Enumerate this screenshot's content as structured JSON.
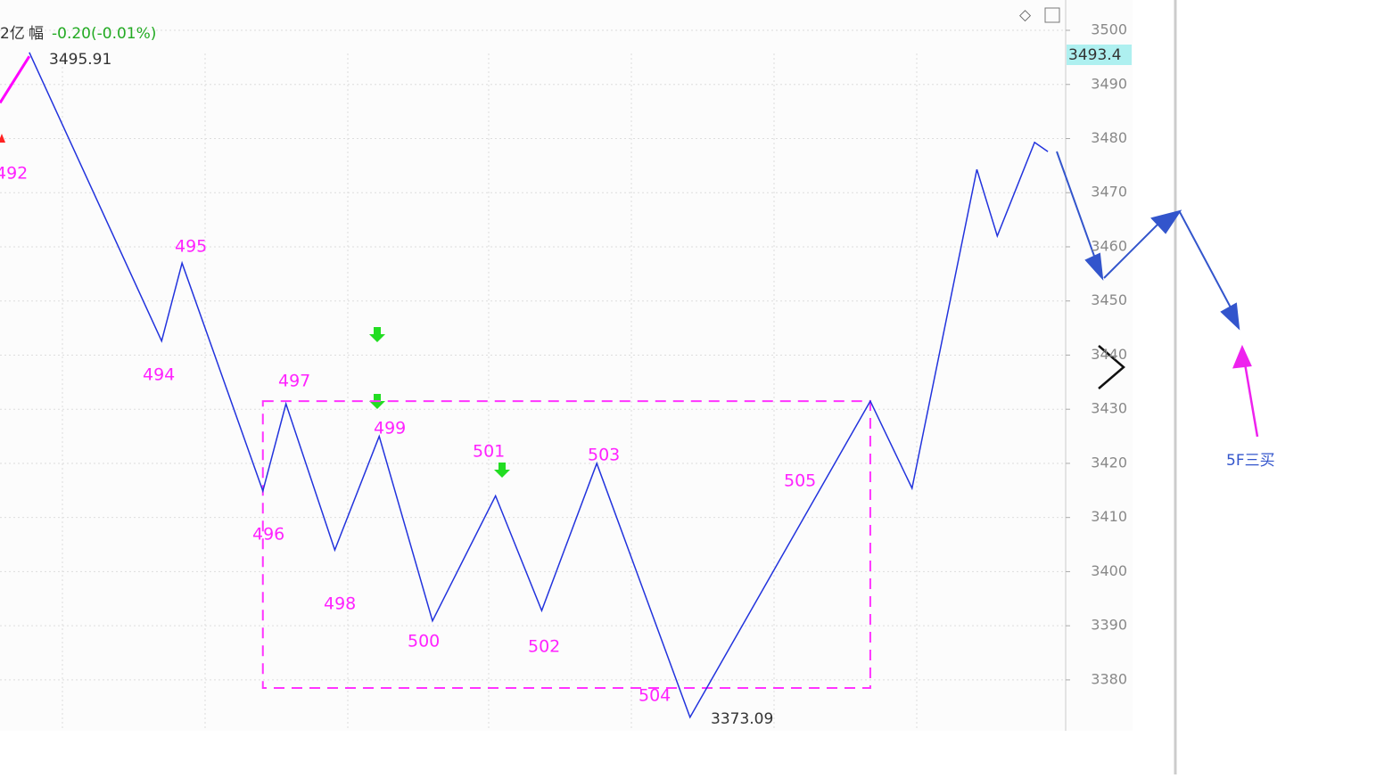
{
  "chart_data": {
    "type": "line",
    "header": {
      "amount": "2亿",
      "change_label": "幅",
      "change": "-0.20(-0.01%)"
    },
    "x": [
      8.25,
      45.5,
      51.25,
      74,
      80.5,
      94.25,
      106.75,
      121.75,
      139.5,
      152.5,
      168,
      194.25,
      245,
      256.75,
      275,
      280.75,
      291.25,
      295
    ],
    "series": [
      {
        "color": "#2233dd",
        "values": [
          3495.91,
          3442.6,
          3457,
          3414.9,
          3431,
          3404,
          3425,
          3390.9,
          3414,
          3392.8,
          3420,
          3373.09,
          3431.5,
          3415.4,
          3474.3,
          3462,
          3479.3,
          3477.6
        ]
      },
      {
        "color": "#ff00ff",
        "x": [
          0,
          8.25
        ],
        "values": [
          3486.6,
          3495.2
        ]
      }
    ],
    "pivot_labels": [
      "492",
      "494",
      "495",
      "496",
      "497",
      "498",
      "499",
      "500",
      "501",
      "502",
      "503",
      "504",
      "505"
    ],
    "high_label": "3495.91",
    "low_label": "3373.09",
    "last_price": "3493.4",
    "zone": {
      "x": [
        74,
        245
      ],
      "y": [
        3378.5,
        3431.5
      ],
      "color": "#ff33ff"
    },
    "annotation": "5F三买",
    "xlim": [
      0,
      300
    ],
    "ylim": [
      3370.6,
      3505.6
    ],
    "yticks": [
      3380,
      3390,
      3400,
      3410,
      3420,
      3430,
      3440,
      3450,
      3460,
      3470,
      3480,
      3490,
      3500
    ],
    "grid": true
  }
}
